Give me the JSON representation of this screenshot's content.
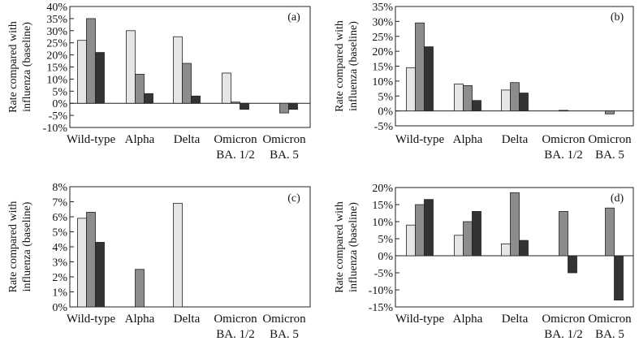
{
  "chart_data": [
    {
      "type": "bar",
      "panel_label": "(a)",
      "ylabel": [
        "Rate compared with",
        "influenza (baseline)"
      ],
      "categories": [
        [
          "Wild-type"
        ],
        [
          "Alpha"
        ],
        [
          "Delta"
        ],
        [
          "Omicron",
          "BA. 1/2"
        ],
        [
          "Omicron",
          "BA. 5"
        ]
      ],
      "ylim": [
        -10,
        40
      ],
      "yticks": [
        -10,
        -5,
        0,
        5,
        10,
        15,
        20,
        25,
        30,
        35,
        40
      ],
      "ytick_labels": [
        "-10%",
        "-5%",
        "0%",
        "5%",
        "10%",
        "15%",
        "20%",
        "25%",
        "30%",
        "35%",
        "40%"
      ],
      "series": [
        {
          "name": "series-1",
          "color": "#e6e6e6",
          "values": [
            26,
            30,
            27.5,
            12.5,
            null
          ]
        },
        {
          "name": "series-2",
          "color": "#8c8c8c",
          "values": [
            35,
            12,
            16.5,
            0.5,
            -4
          ]
        },
        {
          "name": "series-3",
          "color": "#333333",
          "values": [
            21,
            4,
            3,
            -2.5,
            -2.5
          ]
        }
      ]
    },
    {
      "type": "bar",
      "panel_label": "(b)",
      "ylabel": [
        "Rate compared with",
        "influenza (baseline)"
      ],
      "categories": [
        [
          "Wild-type"
        ],
        [
          "Alpha"
        ],
        [
          "Delta"
        ],
        [
          "Omicron",
          "BA. 1/2"
        ],
        [
          "Omicron",
          "BA. 5"
        ]
      ],
      "ylim": [
        -5,
        35
      ],
      "yticks": [
        -5,
        0,
        5,
        10,
        15,
        20,
        25,
        30,
        35
      ],
      "ytick_labels": [
        "-5%",
        "0%",
        "5%",
        "10%",
        "15%",
        "20%",
        "25%",
        "30%",
        "35%"
      ],
      "series": [
        {
          "name": "series-1",
          "color": "#e6e6e6",
          "values": [
            14.5,
            9,
            7,
            null,
            null
          ]
        },
        {
          "name": "series-2",
          "color": "#8c8c8c",
          "values": [
            29.5,
            8.5,
            9.5,
            0.2,
            -1
          ]
        },
        {
          "name": "series-3",
          "color": "#333333",
          "values": [
            21.5,
            3.5,
            6,
            null,
            null
          ]
        }
      ]
    },
    {
      "type": "bar",
      "panel_label": "(c)",
      "ylabel": [
        "Rate compared with",
        "influenza (baseline)"
      ],
      "categories": [
        [
          "Wild-type"
        ],
        [
          "Alpha"
        ],
        [
          "Delta"
        ],
        [
          "Omicron",
          "BA. 1/2"
        ],
        [
          "Omicron",
          "BA. 5"
        ]
      ],
      "ylim": [
        0,
        8
      ],
      "yticks": [
        0,
        1,
        2,
        3,
        4,
        5,
        6,
        7,
        8
      ],
      "ytick_labels": [
        "0%",
        "1%",
        "2%",
        "3%",
        "4%",
        "5%",
        "6%",
        "7%",
        "8%"
      ],
      "series": [
        {
          "name": "series-1",
          "color": "#e6e6e6",
          "values": [
            5.9,
            null,
            6.9,
            null,
            null
          ]
        },
        {
          "name": "series-2",
          "color": "#8c8c8c",
          "values": [
            6.3,
            2.5,
            null,
            null,
            null
          ]
        },
        {
          "name": "series-3",
          "color": "#333333",
          "values": [
            4.3,
            null,
            null,
            null,
            null
          ]
        }
      ]
    },
    {
      "type": "bar",
      "panel_label": "(d)",
      "ylabel": [
        "Rate compared with",
        "influenza (baseline)"
      ],
      "categories": [
        [
          "Wild-type"
        ],
        [
          "Alpha"
        ],
        [
          "Delta"
        ],
        [
          "Omicron",
          "BA. 1/2"
        ],
        [
          "Omicron",
          "BA. 5"
        ]
      ],
      "ylim": [
        -15,
        20
      ],
      "yticks": [
        -15,
        -10,
        -5,
        0,
        5,
        10,
        15,
        20
      ],
      "ytick_labels": [
        "-15%",
        "-10%",
        "-5%",
        "0%",
        "5%",
        "10%",
        "15%",
        "20%"
      ],
      "series": [
        {
          "name": "series-1",
          "color": "#e6e6e6",
          "values": [
            9,
            6,
            3.5,
            null,
            null
          ]
        },
        {
          "name": "series-2",
          "color": "#8c8c8c",
          "values": [
            15,
            10,
            18.5,
            13,
            14
          ]
        },
        {
          "name": "series-3",
          "color": "#333333",
          "values": [
            16.5,
            13,
            4.5,
            -5,
            -13
          ]
        }
      ]
    }
  ]
}
